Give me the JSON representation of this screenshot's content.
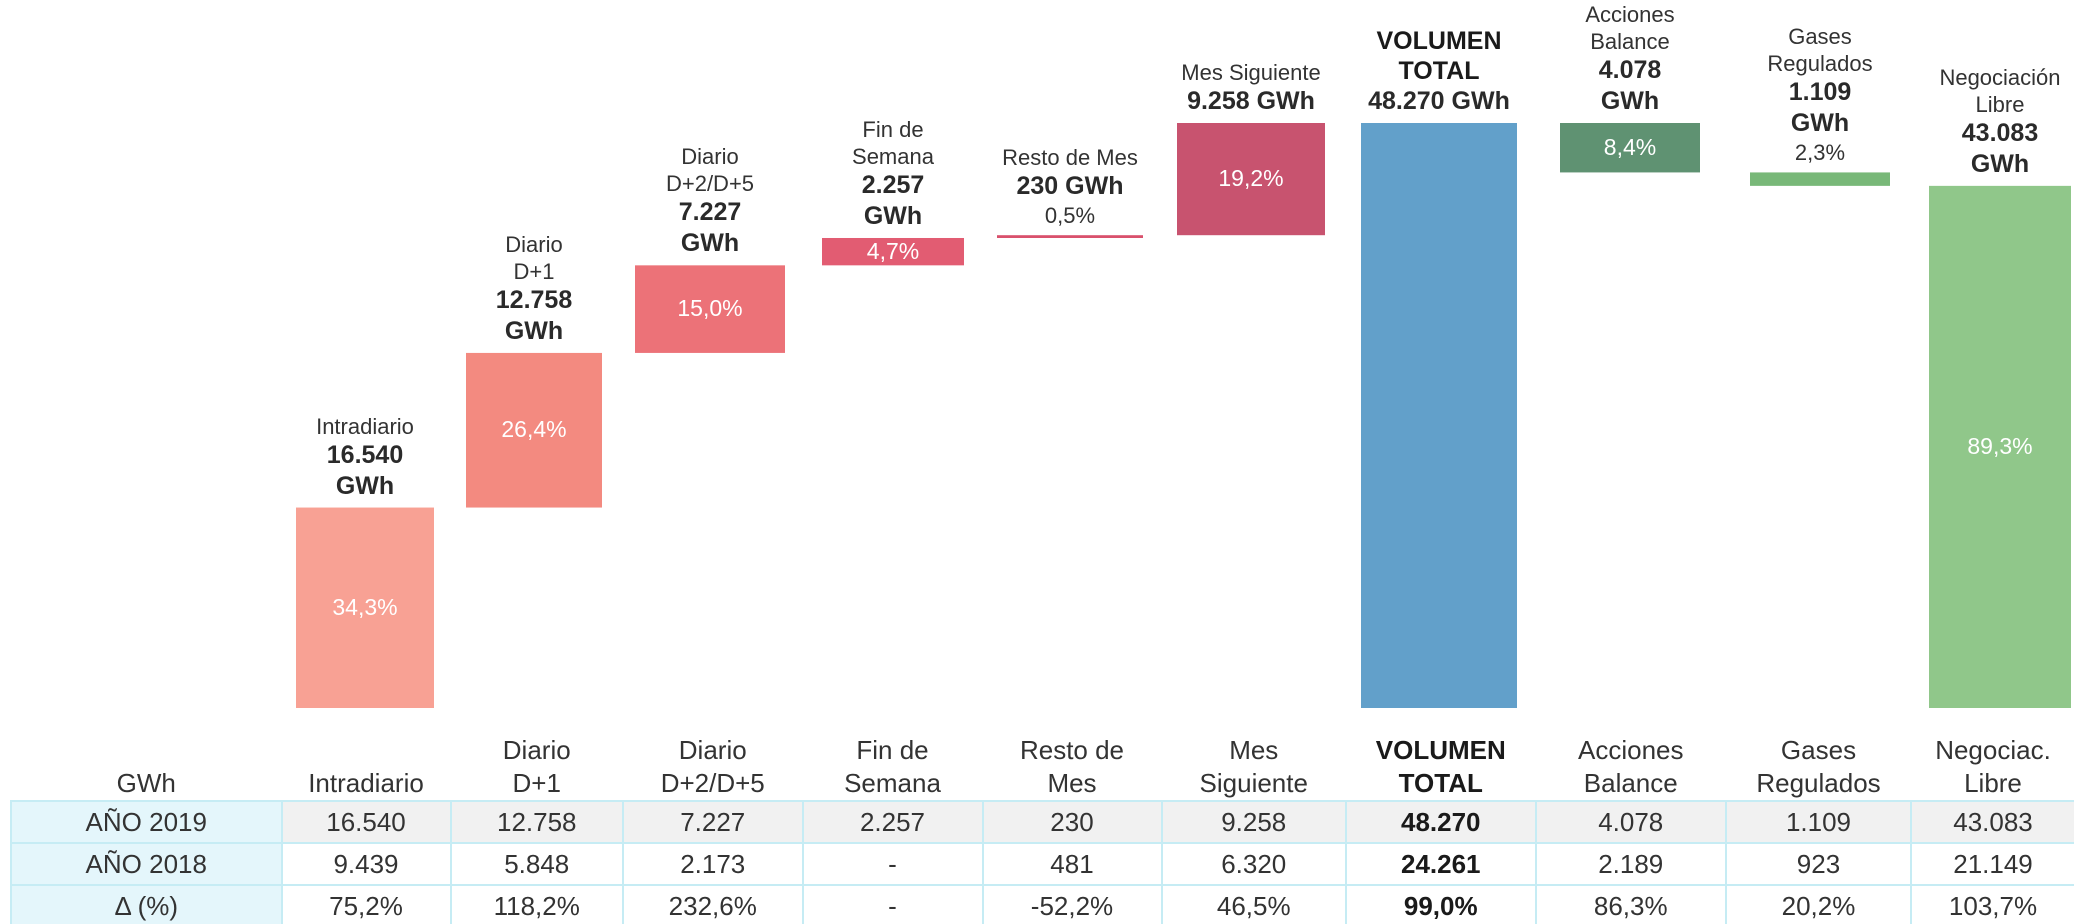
{
  "chart_data": {
    "type": "waterfall",
    "categories": [
      "Intradiario",
      "Diario\nD+1",
      "Diario\nD+2/D+5",
      "Fin de\nSemana",
      "Resto de Mes",
      "Mes Siguiente",
      "VOLUMEN\nTOTAL",
      "Acciones\nBalance",
      "Gases\nRegulados",
      "Negociación\nLibre"
    ],
    "values": [
      16540,
      12758,
      7227,
      2257,
      230,
      9258,
      48270,
      4078,
      1109,
      43083
    ],
    "value_labels": [
      "16.540\nGWh",
      "12.758\nGWh",
      "7.227\nGWh",
      "2.257\nGWh",
      "230 GWh",
      "9.258 GWh",
      "48.270 GWh",
      "4.078\nGWh",
      "1.109\nGWh",
      "43.083\nGWh"
    ],
    "kinds": [
      "increase",
      "increase",
      "increase",
      "increase",
      "increase",
      "increase",
      "total",
      "decrease",
      "decrease",
      "decrease"
    ],
    "shares": [
      34.3,
      26.4,
      15.0,
      4.7,
      0.5,
      19.2,
      null,
      8.4,
      2.3,
      89.3
    ],
    "share_labels": [
      "34,3%",
      "26,4%",
      "15,0%",
      "4,7%",
      "0,5%",
      "19,2%",
      null,
      "8,4%",
      "2,3%",
      "89,3%"
    ],
    "colors": [
      "#f8a194",
      "#f38a80",
      "#ec7278",
      "#e25c72",
      "#d9506c",
      "#c8536f",
      "#62a0ca",
      "#5f9272",
      "#78b878",
      "#90c78a"
    ]
  },
  "table": {
    "header": [
      "GWh",
      "Intradiario",
      "Diario\nD+1",
      "Diario\nD+2/D+5",
      "Fin de\nSemana",
      "Resto de\nMes",
      "Mes\nSiguiente",
      "VOLUMEN\nTOTAL",
      "Acciones\nBalance",
      "Gases\nRegulados",
      "Negociac.\nLibre"
    ],
    "rows": [
      [
        "AÑO 2019",
        "16.540",
        "12.758",
        "7.227",
        "2.257",
        "230",
        "9.258",
        "48.270",
        "4.078",
        "1.109",
        "43.083"
      ],
      [
        "AÑO 2018",
        "9.439",
        "5.848",
        "2.173",
        "-",
        "481",
        "6.320",
        "24.261",
        "2.189",
        "923",
        "21.149"
      ],
      [
        "Δ (%)",
        "75,2%",
        "118,2%",
        "232,6%",
        "-",
        "-52,2%",
        "46,5%",
        "99,0%",
        "86,3%",
        "20,2%",
        "103,7%"
      ]
    ]
  }
}
